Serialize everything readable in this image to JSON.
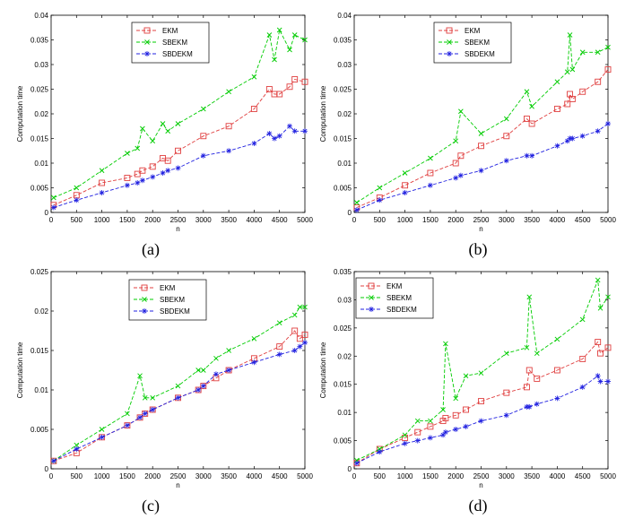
{
  "figure": {
    "captions": [
      "(a)",
      "(b)",
      "(c)",
      "(d)"
    ]
  },
  "chart_data": [
    {
      "type": "line",
      "panel": "(a)",
      "xlabel": "n",
      "ylabel": "Computation time",
      "xlim": [
        0,
        5000
      ],
      "ylim": [
        0,
        0.04
      ],
      "xticks": [
        0,
        500,
        1000,
        1500,
        2000,
        2500,
        3000,
        3500,
        4000,
        4500,
        5000
      ],
      "yticks": [
        0,
        0.005,
        0.01,
        0.015,
        0.02,
        0.025,
        0.03,
        0.035,
        0.04
      ],
      "ytick_labels": [
        "0",
        "0.005",
        "0.01",
        "0.015",
        "0.02",
        "0.025",
        "0.03",
        "0.035",
        "0.04"
      ],
      "legend_position": "top-center",
      "x": [
        50,
        500,
        1000,
        1500,
        1700,
        1800,
        2000,
        2200,
        2300,
        2500,
        3000,
        3500,
        4000,
        4300,
        4400,
        4500,
        4700,
        4800,
        5000
      ],
      "series": [
        {
          "name": "EKM",
          "color": "#e04040",
          "marker": "square",
          "values": [
            0.0015,
            0.0035,
            0.006,
            0.007,
            0.0078,
            0.0085,
            0.0093,
            0.011,
            0.0105,
            0.0125,
            0.0155,
            0.0175,
            0.021,
            0.025,
            0.024,
            0.024,
            0.0255,
            0.027,
            0.0265
          ]
        },
        {
          "name": "SBEKM",
          "color": "#00cc00",
          "marker": "x",
          "values": [
            0.003,
            0.005,
            0.0085,
            0.012,
            0.013,
            0.017,
            0.0145,
            0.018,
            0.0165,
            0.018,
            0.021,
            0.0245,
            0.0275,
            0.036,
            0.031,
            0.037,
            0.033,
            0.036,
            0.035
          ]
        },
        {
          "name": "SBDEKM",
          "color": "#2020e0",
          "marker": "star",
          "values": [
            0.001,
            0.0025,
            0.004,
            0.0055,
            0.006,
            0.0065,
            0.0072,
            0.008,
            0.0085,
            0.009,
            0.0115,
            0.0125,
            0.014,
            0.016,
            0.015,
            0.0155,
            0.0175,
            0.0165,
            0.0165
          ]
        }
      ]
    },
    {
      "type": "line",
      "panel": "(b)",
      "xlabel": "n",
      "ylabel": "Computation time",
      "xlim": [
        0,
        5000
      ],
      "ylim": [
        0,
        0.04
      ],
      "xticks": [
        0,
        500,
        1000,
        1500,
        2000,
        2500,
        3000,
        3500,
        4000,
        4500,
        5000
      ],
      "yticks": [
        0,
        0.005,
        0.01,
        0.015,
        0.02,
        0.025,
        0.03,
        0.035,
        0.04
      ],
      "ytick_labels": [
        "0",
        "0.005",
        "0.01",
        "0.015",
        "0.02",
        "0.025",
        "0.03",
        "0.035",
        "0.04"
      ],
      "legend_position": "top-center",
      "x": [
        50,
        500,
        1000,
        1500,
        2000,
        2100,
        2500,
        3000,
        3400,
        3500,
        4000,
        4200,
        4250,
        4300,
        4500,
        4800,
        5000
      ],
      "series": [
        {
          "name": "EKM",
          "color": "#e04040",
          "marker": "square",
          "values": [
            0.001,
            0.003,
            0.0055,
            0.008,
            0.01,
            0.0115,
            0.0135,
            0.0155,
            0.019,
            0.018,
            0.021,
            0.022,
            0.024,
            0.023,
            0.0245,
            0.0265,
            0.029
          ]
        },
        {
          "name": "SBEKM",
          "color": "#00cc00",
          "marker": "x",
          "values": [
            0.002,
            0.005,
            0.008,
            0.011,
            0.0145,
            0.0205,
            0.016,
            0.019,
            0.0245,
            0.0215,
            0.0265,
            0.0285,
            0.036,
            0.029,
            0.0325,
            0.0325,
            0.0335
          ]
        },
        {
          "name": "SBDEKM",
          "color": "#2020e0",
          "marker": "star",
          "values": [
            0.0005,
            0.0025,
            0.004,
            0.0055,
            0.007,
            0.0075,
            0.0085,
            0.0105,
            0.0115,
            0.0115,
            0.0135,
            0.0145,
            0.015,
            0.015,
            0.0155,
            0.0165,
            0.018
          ]
        }
      ]
    },
    {
      "type": "line",
      "panel": "(c)",
      "xlabel": "n",
      "ylabel": "Computation time",
      "xlim": [
        0,
        5000
      ],
      "ylim": [
        0,
        0.025
      ],
      "xticks": [
        0,
        500,
        1000,
        1500,
        2000,
        2500,
        3000,
        3500,
        4000,
        4500,
        5000
      ],
      "yticks": [
        0,
        0.005,
        0.01,
        0.015,
        0.02,
        0.025
      ],
      "ytick_labels": [
        "0",
        "0.005",
        "0.01",
        "0.015",
        "0.02",
        "0.025"
      ],
      "legend_position": "top-center",
      "x": [
        50,
        500,
        1000,
        1500,
        1750,
        1850,
        2000,
        2500,
        2900,
        3000,
        3250,
        3500,
        4000,
        4500,
        4800,
        4900,
        5000
      ],
      "series": [
        {
          "name": "EKM",
          "color": "#e04040",
          "marker": "square",
          "values": [
            0.001,
            0.002,
            0.004,
            0.0055,
            0.0065,
            0.007,
            0.0075,
            0.009,
            0.01,
            0.0105,
            0.0115,
            0.0125,
            0.014,
            0.0155,
            0.0175,
            0.0165,
            0.017
          ]
        },
        {
          "name": "SBEKM",
          "color": "#00cc00",
          "marker": "x",
          "values": [
            0.001,
            0.003,
            0.005,
            0.007,
            0.0118,
            0.009,
            0.009,
            0.0105,
            0.0125,
            0.0125,
            0.014,
            0.015,
            0.0165,
            0.0185,
            0.0195,
            0.0205,
            0.0205
          ]
        },
        {
          "name": "SBDEKM",
          "color": "#2020e0",
          "marker": "star",
          "values": [
            0.001,
            0.0025,
            0.004,
            0.0055,
            0.0065,
            0.007,
            0.0075,
            0.009,
            0.01,
            0.0105,
            0.012,
            0.0125,
            0.0135,
            0.0145,
            0.015,
            0.0155,
            0.016
          ]
        }
      ]
    },
    {
      "type": "line",
      "panel": "(d)",
      "xlabel": "n",
      "ylabel": "Computation time",
      "xlim": [
        0,
        5000
      ],
      "ylim": [
        0,
        0.035
      ],
      "xticks": [
        0,
        500,
        1000,
        1500,
        2000,
        2500,
        3000,
        3500,
        4000,
        4500,
        5000
      ],
      "yticks": [
        0,
        0.005,
        0.01,
        0.015,
        0.02,
        0.025,
        0.03,
        0.035
      ],
      "ytick_labels": [
        "0",
        "0.005",
        "0.01",
        "0.015",
        "0.02",
        "0.025",
        "0.03",
        "0.035"
      ],
      "legend_position": "top-left",
      "x": [
        50,
        500,
        1000,
        1250,
        1500,
        1750,
        1800,
        2000,
        2200,
        2500,
        3000,
        3400,
        3450,
        3600,
        4000,
        4500,
        4800,
        4850,
        5000
      ],
      "series": [
        {
          "name": "EKM",
          "color": "#e04040",
          "marker": "square",
          "values": [
            0.001,
            0.0035,
            0.0055,
            0.0065,
            0.0075,
            0.0085,
            0.009,
            0.0095,
            0.0105,
            0.012,
            0.0135,
            0.0145,
            0.0175,
            0.016,
            0.0175,
            0.0195,
            0.0225,
            0.0205,
            0.0215
          ]
        },
        {
          "name": "SBEKM",
          "color": "#00cc00",
          "marker": "x",
          "values": [
            0.0015,
            0.0035,
            0.006,
            0.0085,
            0.0085,
            0.0105,
            0.0222,
            0.0125,
            0.0165,
            0.017,
            0.0205,
            0.0215,
            0.0305,
            0.0205,
            0.023,
            0.0265,
            0.0335,
            0.0285,
            0.0305
          ]
        },
        {
          "name": "SBDEKM",
          "color": "#2020e0",
          "marker": "star",
          "values": [
            0.001,
            0.003,
            0.0045,
            0.005,
            0.0055,
            0.006,
            0.0065,
            0.007,
            0.0075,
            0.0085,
            0.0095,
            0.011,
            0.011,
            0.0115,
            0.0125,
            0.0145,
            0.0165,
            0.0155,
            0.0155
          ]
        }
      ]
    }
  ]
}
